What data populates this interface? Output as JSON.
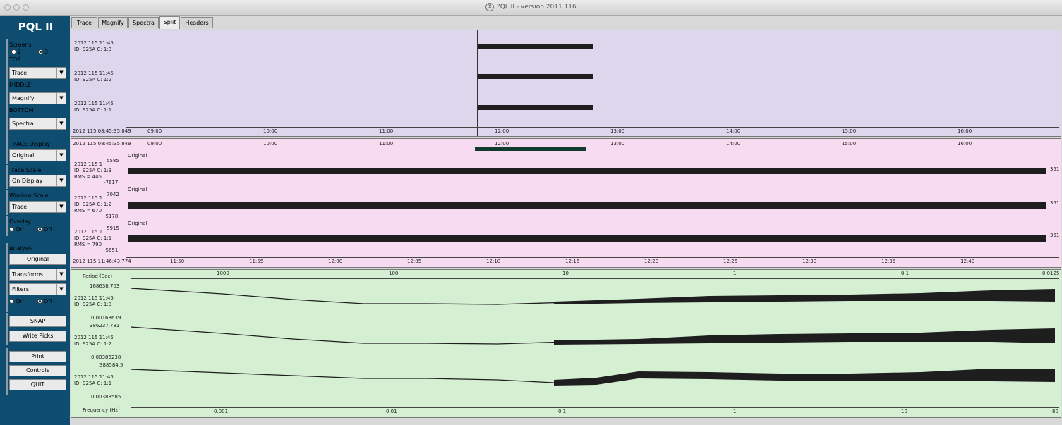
{
  "window": {
    "title": "PQL II - version 2011.116"
  },
  "sidebar": {
    "logo": "PQL II",
    "screens": {
      "label": "Screens",
      "option2": "2",
      "option3": "3",
      "selected": "3"
    },
    "top": {
      "label": "TOP",
      "value": "Trace"
    },
    "middle": {
      "label": "MIDDLE",
      "value": "Magnify"
    },
    "bottom": {
      "label": "BOTTOM",
      "value": "Spectra"
    },
    "trace_display": {
      "label": "TRACE Display",
      "value": "Original"
    },
    "trace_scale": {
      "label": "Trace Scale",
      "value": "On Display"
    },
    "window_scale": {
      "label": "Window Scale",
      "value": "Trace"
    },
    "overlay": {
      "label": "Overlay",
      "on": "On",
      "off": "Off",
      "selected": "Off"
    },
    "analysis": {
      "label": "Analysis",
      "original": "Original",
      "transforms": "Transforms",
      "filters": "Filters",
      "on": "On",
      "off": "Off",
      "selected": "Off"
    },
    "snap": "SNAP",
    "write_picks": "Write Picks",
    "print": "Print",
    "controls": "Controls",
    "quit": "QUIT"
  },
  "tabs": [
    "Trace",
    "Magnify",
    "Spectra",
    "Split",
    "Headers"
  ],
  "active_tab": "Split",
  "trace_pane": {
    "background": "#ddd6ec",
    "stations": [
      {
        "line1": "2012 115 11:45",
        "line2": "ID: 925A C: 1:3"
      },
      {
        "line1": "2012 115 11:45",
        "line2": "ID: 925A C: 1:2"
      },
      {
        "line1": "2012 115 11:45",
        "line2": "ID: 925A C: 1:1"
      }
    ],
    "start_time": "2012 115 08:45:35.849",
    "ticks": [
      "09:00",
      "10:00",
      "11:00",
      "12:00",
      "13:00",
      "14:00",
      "15:00",
      "16:00"
    ]
  },
  "magnify_pane": {
    "background": "#f7dcf1",
    "start_time": "2012 115 08:45:35.849",
    "top_ticks": [
      "09:00",
      "10:00",
      "11:00",
      "12:00",
      "13:00",
      "14:00",
      "15:00",
      "16:00"
    ],
    "traces": [
      {
        "label": "Original",
        "line1": "2012 115 1",
        "line2": "ID: 925A C: 1:3",
        "line3": "RMS = 445",
        "max": "5585",
        "min": "-7617",
        "right": "351"
      },
      {
        "label": "Original",
        "line1": "2012 115 1",
        "line2": "ID: 925A C: 1:2",
        "line3": "RMS = 670",
        "max": "7042",
        "min": "-5178",
        "right": "351"
      },
      {
        "label": "Original",
        "line1": "2012 115 1",
        "line2": "ID: 925A C: 1:1",
        "line3": "RMS = 790",
        "max": "5915",
        "min": "-5651",
        "right": "351"
      }
    ],
    "bottom_start": "2012 115 11:46:43.774",
    "bottom_ticks": [
      "11:50",
      "11:55",
      "12:00",
      "12:05",
      "12:10",
      "12:15",
      "12:20",
      "12:25",
      "12:30",
      "12:35",
      "12:40"
    ]
  },
  "spectra_pane": {
    "background": "#d5efd3",
    "period_label": "Period (Sec)",
    "period_ticks": [
      "1000",
      "100",
      "10",
      "1",
      "0.1",
      "0.0125"
    ],
    "frequency_label": "Frequency (Hz)",
    "frequency_ticks": [
      "0.001",
      "0.01",
      "0.1",
      "1",
      "10",
      "80"
    ],
    "traces": [
      {
        "max": "168638.703",
        "line1": "2012 115 11:45",
        "line2": "ID: 925A C: 1:3",
        "min": "0.00168639"
      },
      {
        "max": "386237.781",
        "line1": "2012 115 11:45",
        "line2": "ID: 925A C: 1:2",
        "min": "0.00386238"
      },
      {
        "max": "388584.5",
        "line1": "2012 115 11:45",
        "line2": "ID: 925A C: 1:1",
        "min": "0.00388585"
      }
    ]
  }
}
